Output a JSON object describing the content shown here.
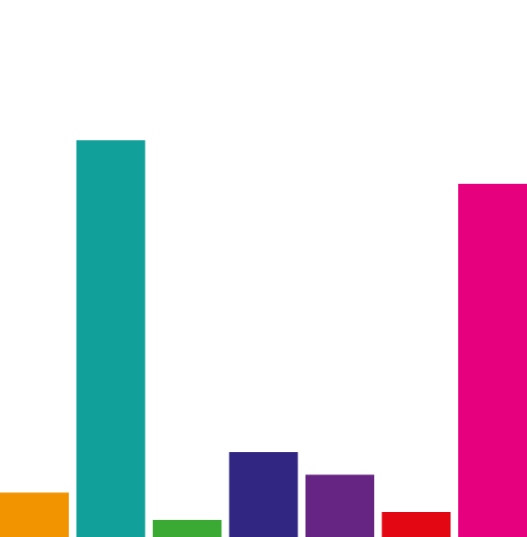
{
  "chart_data": {
    "type": "bar",
    "title": "",
    "xlabel": "",
    "ylabel": "",
    "ylim": [
      0,
      100
    ],
    "grid": false,
    "legend": "none",
    "bars": [
      {
        "value": 11.2,
        "color": "#f29400"
      },
      {
        "value": 100.0,
        "color": "#12a19a"
      },
      {
        "value": 4.3,
        "color": "#3aaa35"
      },
      {
        "value": 21.4,
        "color": "#312783"
      },
      {
        "value": 15.7,
        "color": "#662483"
      },
      {
        "value": 6.3,
        "color": "#e30613"
      },
      {
        "value": 89.0,
        "color": "#e6007e"
      }
    ]
  }
}
